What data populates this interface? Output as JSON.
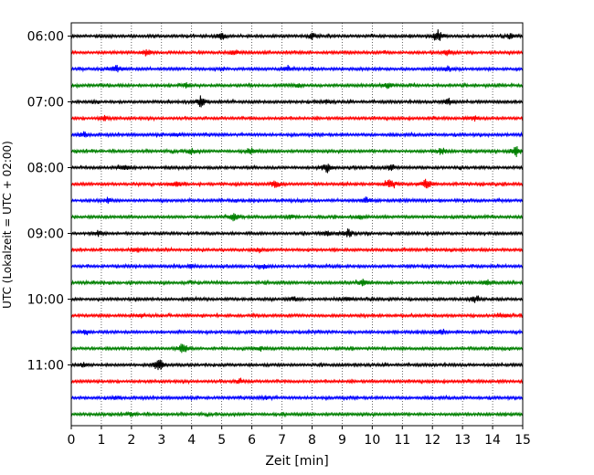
{
  "chart_data": {
    "type": "line",
    "title": "",
    "xlabel": "Zeit  [min]",
    "ylabel": "UTC (Lokalzeit = UTC + 02:00)",
    "xlim": [
      0,
      15
    ],
    "x_ticks": [
      "0",
      "1",
      "2",
      "3",
      "4",
      "5",
      "6",
      "7",
      "8",
      "9",
      "10",
      "11",
      "12",
      "13",
      "14",
      "15"
    ],
    "y_tick_labels": [
      "06:00",
      "07:00",
      "08:00",
      "09:00",
      "10:00",
      "11:00"
    ],
    "grid": "vertical dotted lines at each minute",
    "trace_interval_min": 15,
    "colors": [
      "#000000",
      "#ff0000",
      "#0000ff",
      "#008000"
    ],
    "traces": [
      {
        "start": "06:00",
        "color": "#000000",
        "events": [
          [
            5.0,
            0.6
          ],
          [
            8.0,
            0.5
          ],
          [
            12.2,
            1.0
          ],
          [
            14.6,
            0.5
          ]
        ]
      },
      {
        "start": "06:15",
        "color": "#ff0000",
        "events": [
          [
            2.5,
            0.6
          ],
          [
            5.4,
            0.4
          ],
          [
            12.5,
            0.4
          ]
        ]
      },
      {
        "start": "06:30",
        "color": "#0000ff",
        "events": [
          [
            1.5,
            0.6
          ],
          [
            7.2,
            0.4
          ],
          [
            12.5,
            0.4
          ]
        ]
      },
      {
        "start": "06:45",
        "color": "#008000",
        "events": [
          [
            3.8,
            0.4
          ],
          [
            10.5,
            0.6
          ],
          [
            7.5,
            0.3
          ]
        ]
      },
      {
        "start": "07:00",
        "color": "#000000",
        "events": [
          [
            4.3,
            0.9
          ],
          [
            12.5,
            0.7
          ],
          [
            8.5,
            0.3
          ]
        ]
      },
      {
        "start": "07:15",
        "color": "#ff0000",
        "events": [
          [
            1.1,
            0.4
          ],
          [
            13.4,
            0.4
          ]
        ]
      },
      {
        "start": "07:30",
        "color": "#0000ff",
        "events": [
          [
            0.4,
            0.5
          ],
          [
            3.5,
            0.3
          ]
        ]
      },
      {
        "start": "07:45",
        "color": "#008000",
        "events": [
          [
            4.0,
            0.5
          ],
          [
            6.0,
            0.5
          ],
          [
            12.3,
            0.6
          ],
          [
            14.8,
            1.0
          ]
        ]
      },
      {
        "start": "08:00",
        "color": "#000000",
        "events": [
          [
            1.8,
            0.4
          ],
          [
            8.5,
            0.8
          ],
          [
            10.6,
            0.5
          ]
        ]
      },
      {
        "start": "08:15",
        "color": "#ff0000",
        "events": [
          [
            3.5,
            0.5
          ],
          [
            6.8,
            0.6
          ],
          [
            10.6,
            1.0
          ],
          [
            11.8,
            0.9
          ]
        ]
      },
      {
        "start": "08:30",
        "color": "#0000ff",
        "events": [
          [
            1.2,
            0.4
          ],
          [
            9.8,
            0.5
          ]
        ]
      },
      {
        "start": "08:45",
        "color": "#008000",
        "events": [
          [
            5.4,
            0.6
          ],
          [
            7.3,
            0.3
          ],
          [
            9.6,
            0.3
          ]
        ]
      },
      {
        "start": "09:00",
        "color": "#000000",
        "events": [
          [
            0.9,
            0.4
          ],
          [
            8.5,
            0.4
          ],
          [
            9.2,
            0.7
          ]
        ]
      },
      {
        "start": "09:15",
        "color": "#ff0000",
        "events": [
          [
            2.2,
            0.4
          ],
          [
            6.2,
            0.3
          ]
        ]
      },
      {
        "start": "09:30",
        "color": "#0000ff",
        "events": [
          [
            4.0,
            0.3
          ],
          [
            6.4,
            0.4
          ]
        ]
      },
      {
        "start": "09:45",
        "color": "#008000",
        "events": [
          [
            9.7,
            0.6
          ],
          [
            13.8,
            0.3
          ]
        ]
      },
      {
        "start": "10:00",
        "color": "#000000",
        "events": [
          [
            7.4,
            0.4
          ],
          [
            9.2,
            0.3
          ],
          [
            13.4,
            0.5
          ]
        ]
      },
      {
        "start": "10:15",
        "color": "#ff0000",
        "events": [
          [
            2.3,
            0.3
          ],
          [
            14.4,
            0.3
          ]
        ]
      },
      {
        "start": "10:30",
        "color": "#0000ff",
        "events": [
          [
            0.5,
            0.4
          ],
          [
            12.3,
            0.3
          ]
        ]
      },
      {
        "start": "10:45",
        "color": "#008000",
        "events": [
          [
            3.7,
            1.0
          ],
          [
            6.3,
            0.3
          ]
        ]
      },
      {
        "start": "11:00",
        "color": "#000000",
        "events": [
          [
            2.9,
            1.2
          ],
          [
            0.4,
            0.3
          ]
        ]
      },
      {
        "start": "11:15",
        "color": "#ff0000",
        "events": [
          [
            5.6,
            0.4
          ]
        ]
      },
      {
        "start": "11:30",
        "color": "#0000ff",
        "events": [
          [
            1.5,
            0.3
          ],
          [
            6.5,
            0.3
          ]
        ]
      },
      {
        "start": "11:45",
        "color": "#008000",
        "events": [
          [
            2.0,
            0.3
          ]
        ]
      }
    ]
  }
}
